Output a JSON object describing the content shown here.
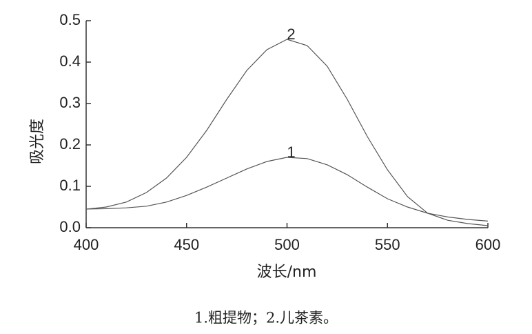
{
  "chart_data": {
    "type": "line",
    "x_label": "波长/nm",
    "y_label": "吸光度",
    "caption": "1.粗提物；2.儿茶素。",
    "x": [
      400,
      410,
      420,
      430,
      440,
      450,
      460,
      470,
      480,
      490,
      500,
      510,
      520,
      530,
      540,
      550,
      560,
      570,
      580,
      590,
      600
    ],
    "series": [
      {
        "name": "1",
        "color": "#555555",
        "values": [
          0.045,
          0.046,
          0.048,
          0.052,
          0.062,
          0.078,
          0.098,
          0.12,
          0.142,
          0.16,
          0.17,
          0.167,
          0.152,
          0.128,
          0.098,
          0.07,
          0.05,
          0.035,
          0.026,
          0.02,
          0.016
        ]
      },
      {
        "name": "2",
        "color": "#555555",
        "values": [
          0.045,
          0.05,
          0.062,
          0.085,
          0.12,
          0.17,
          0.235,
          0.31,
          0.38,
          0.43,
          0.455,
          0.44,
          0.39,
          0.31,
          0.22,
          0.14,
          0.075,
          0.035,
          0.018,
          0.01,
          0.005
        ]
      }
    ],
    "xlim": [
      400,
      600
    ],
    "xticks": [
      400,
      450,
      500,
      550,
      600
    ],
    "ylim": [
      0,
      0.5
    ],
    "yticks": [
      {
        "value": 0,
        "label": "0.0"
      },
      0.1,
      0.2,
      0.3,
      0.4,
      0.5
    ]
  }
}
